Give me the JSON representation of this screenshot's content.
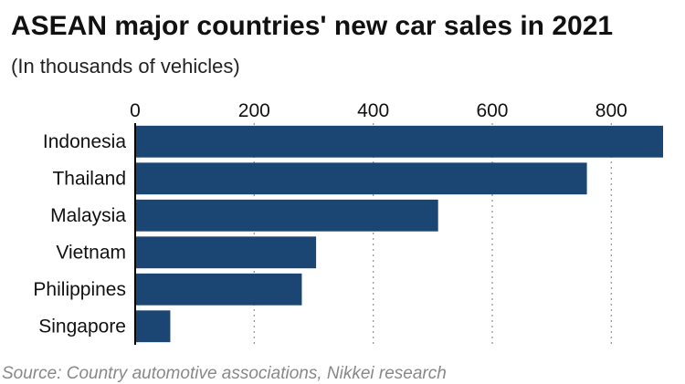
{
  "chart_data": {
    "type": "bar",
    "orientation": "horizontal",
    "title": "ASEAN major countries' new car sales in 2021",
    "subtitle": "(In thousands of vehicles)",
    "categories": [
      "Indonesia",
      "Thailand",
      "Malaysia",
      "Vietnam",
      "Philippines",
      "Singapore"
    ],
    "values": [
      887,
      759,
      509,
      304,
      280,
      59
    ],
    "xlim": [
      0,
      887
    ],
    "xticks": [
      0,
      200,
      400,
      600,
      800
    ],
    "xtick_labels": [
      "0",
      "200",
      "400",
      "600",
      "800"
    ],
    "grid": "vertical dotted",
    "bar_color": "#1b4674",
    "source": "Source: Country automotive associations, Nikkei research"
  }
}
